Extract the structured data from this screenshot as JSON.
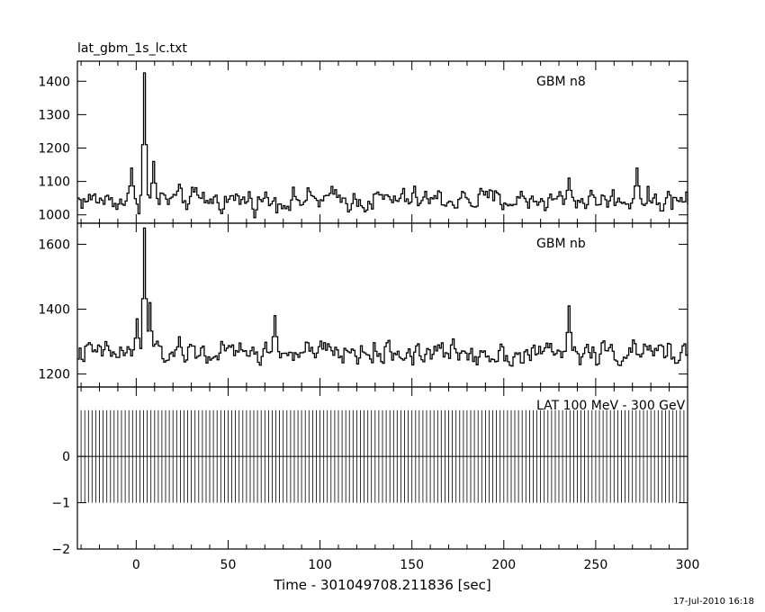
{
  "file_label": "lat_gbm_1s_lc.txt",
  "timestamp": "17-Jul-2010 16:18",
  "chart_data": [
    {
      "type": "line",
      "panel_label": "GBM n8",
      "xlim": [
        -32,
        300
      ],
      "ylim": [
        975,
        1460
      ],
      "yticks": [
        1000,
        1100,
        1200,
        1300,
        1400
      ],
      "baseline": 1045,
      "noise": 28,
      "peaks": [
        {
          "x": 4,
          "y": 1425
        },
        {
          "x": 9,
          "y": 1160
        },
        {
          "x": -3,
          "y": 1140
        },
        {
          "x": 272,
          "y": 1140
        },
        {
          "x": 235,
          "y": 1110
        }
      ]
    },
    {
      "type": "line",
      "panel_label": "GBM nb",
      "xlim": [
        -32,
        300
      ],
      "ylim": [
        1160,
        1665
      ],
      "yticks": [
        1200,
        1400,
        1600
      ],
      "baseline": 1265,
      "noise": 30,
      "peaks": [
        {
          "x": 4,
          "y": 1650
        },
        {
          "x": 7,
          "y": 1420
        },
        {
          "x": 0,
          "y": 1370
        },
        {
          "x": 235,
          "y": 1410
        },
        {
          "x": 75,
          "y": 1380
        }
      ]
    },
    {
      "type": "bar",
      "panel_label": "LAT 100 MeV - 300 GeV",
      "xlim": [
        -32,
        300
      ],
      "ylim": [
        -2,
        1.5
      ],
      "yticks": [
        0,
        -1,
        -2
      ],
      "bar_top": 1.0,
      "bar_bottom": -1.0,
      "bin_width": 1,
      "x_label": "Time - 301049708.211836 [sec]",
      "xticks": [
        0,
        50,
        100,
        150,
        200,
        250,
        300
      ]
    }
  ]
}
